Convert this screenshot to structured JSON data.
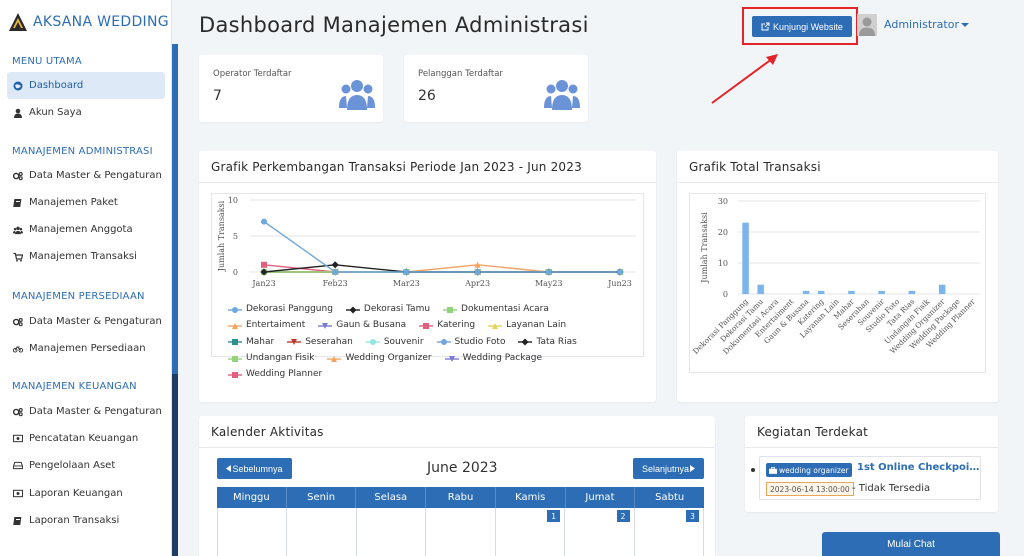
{
  "brand": {
    "name": "AKSANA WEDDING"
  },
  "sidebar": {
    "sections": [
      {
        "title": "MENU UTAMA"
      },
      {
        "title": "MANAJEMEN ADMINISTRASI"
      },
      {
        "title": "MANAJEMEN PERSEDIAAN"
      },
      {
        "title": "MANAJEMEN KEUANGAN"
      }
    ],
    "items": [
      {
        "label": "Dashboard",
        "icon": "globe-icon"
      },
      {
        "label": "Akun Saya",
        "icon": "user-icon"
      },
      {
        "label": "Data Master & Pengaturan",
        "icon": "cogs-icon"
      },
      {
        "label": "Manajemen Paket",
        "icon": "book-icon"
      },
      {
        "label": "Manajemen Anggota",
        "icon": "users-icon"
      },
      {
        "label": "Manajemen Transaksi",
        "icon": "cart-icon"
      },
      {
        "label": "Data Master & Pengaturan",
        "icon": "cogs-icon"
      },
      {
        "label": "Manajemen Persediaan",
        "icon": "bicycle-icon"
      },
      {
        "label": "Data Master & Pengaturan",
        "icon": "cogs-icon"
      },
      {
        "label": "Pencatatan Keuangan",
        "icon": "money-icon"
      },
      {
        "label": "Pengelolaan Aset",
        "icon": "hdd-icon"
      },
      {
        "label": "Laporan Keuangan",
        "icon": "money-icon"
      },
      {
        "label": "Laporan Transaksi",
        "icon": "book-icon"
      }
    ]
  },
  "header": {
    "title": "Dashboard Manajemen Administrasi",
    "visit_label": "Kunjungi Website",
    "user_label": "Administrator"
  },
  "stats": {
    "operator": {
      "label": "Operator Terdaftar",
      "value": "7"
    },
    "customer": {
      "label": "Pelanggan Terdaftar",
      "value": "26"
    }
  },
  "line_panel": {
    "title": "Grafik Perkembangan Transaksi Periode Jan 2023 - Jun 2023"
  },
  "bar_panel": {
    "title": "Grafik Total Transaksi"
  },
  "calendar": {
    "title": "Kalender Aktivitas",
    "prev_label": "Sebelumnya",
    "next_label": "Selanjutnya",
    "month_label": "June 2023",
    "weekdays": [
      "Minggu",
      "Senin",
      "Selasa",
      "Rabu",
      "Kamis",
      "Jumat",
      "Sabtu"
    ],
    "first_row_days": [
      "",
      "",
      "",
      "",
      "1",
      "2",
      "3"
    ]
  },
  "upcoming": {
    "title": "Kegiatan Terdekat",
    "tag": "wedding organizer",
    "event_title": "1st Online Checkpoint...",
    "date": "2023-06-14 13:00:00",
    "status": "- Tidak Tersedia"
  },
  "chat": {
    "label": "Mulai Chat"
  },
  "chart_data": [
    {
      "type": "line",
      "title": "Grafik Perkembangan Transaksi Periode Jan 2023 - Jun 2023",
      "ylabel": "Jumlah Transaksi",
      "xlabel": "",
      "categories": [
        "Jan23",
        "Feb23",
        "Mar23",
        "Apr23",
        "May23",
        "Jun23"
      ],
      "ylim": [
        0,
        10
      ],
      "yticks": [
        0,
        5,
        10
      ],
      "legend_position": "bottom",
      "series": [
        {
          "name": "Dekorasi Panggung",
          "color": "#6fa8dc",
          "marker": "circle",
          "values": [
            7,
            0,
            0,
            0,
            0,
            0
          ]
        },
        {
          "name": "Dekorasi Tamu",
          "color": "#222222",
          "marker": "diamond",
          "values": [
            0,
            1,
            0,
            0,
            0,
            0
          ]
        },
        {
          "name": "Dokumentasi Acara",
          "color": "#93d37a",
          "marker": "square",
          "values": [
            0,
            0,
            0,
            0,
            0,
            0
          ]
        },
        {
          "name": "Entertaiment",
          "color": "#f4a460",
          "marker": "triangle",
          "values": [
            0,
            0,
            0,
            1,
            0,
            0
          ]
        },
        {
          "name": "Gaun & Busana",
          "color": "#7b7bd1",
          "marker": "triangle-down",
          "values": [
            0,
            0,
            0,
            0,
            0,
            0
          ]
        },
        {
          "name": "Katering",
          "color": "#e0607e",
          "marker": "square",
          "values": [
            1,
            0,
            0,
            0,
            0,
            0
          ]
        },
        {
          "name": "Layanan Lain",
          "color": "#e4d354",
          "marker": "triangle",
          "values": [
            0,
            0,
            0,
            0,
            0,
            0
          ]
        },
        {
          "name": "Mahar",
          "color": "#2b908f",
          "marker": "square",
          "values": [
            0,
            0,
            0,
            0,
            0,
            0
          ]
        },
        {
          "name": "Seserahan",
          "color": "#c0392b",
          "marker": "triangle-down",
          "values": [
            0,
            0,
            0,
            0,
            0,
            0
          ]
        },
        {
          "name": "Souvenir",
          "color": "#91e8e1",
          "marker": "circle",
          "values": [
            0,
            0,
            0,
            0,
            0,
            0
          ]
        },
        {
          "name": "Studio Foto",
          "color": "#6fa8dc",
          "marker": "circle",
          "values": [
            0,
            0,
            0,
            0,
            0,
            0
          ]
        },
        {
          "name": "Tata Rias",
          "color": "#222222",
          "marker": "diamond",
          "values": [
            0,
            0,
            0,
            0,
            0,
            0
          ]
        },
        {
          "name": "Undangan Fisik",
          "color": "#93d37a",
          "marker": "square",
          "values": [
            0,
            0,
            0,
            0,
            0,
            0
          ]
        },
        {
          "name": "Wedding Organizer",
          "color": "#f4a460",
          "marker": "triangle",
          "values": [
            0,
            0,
            0,
            0,
            0,
            0
          ]
        },
        {
          "name": "Wedding Package",
          "color": "#7b7bd1",
          "marker": "triangle-down",
          "values": [
            0,
            0,
            0,
            0,
            0,
            0
          ]
        },
        {
          "name": "Wedding Planner",
          "color": "#e0607e",
          "marker": "square",
          "values": [
            0,
            0,
            0,
            0,
            0,
            0
          ]
        }
      ]
    },
    {
      "type": "bar",
      "title": "Grafik Total Transaksi",
      "ylabel": "Jumlah Transaksi",
      "xlabel": "",
      "categories": [
        "Dekorasi Panggung",
        "Dekorasi Tamu",
        "Dokumentasi Acara",
        "Entertaiment",
        "Gaun & Busana",
        "Katering",
        "Layanan Lain",
        "Mahar",
        "Seserahan",
        "Souvenir",
        "Studio Foto",
        "Tata Rias",
        "Undangan Fisik",
        "Wedding Organizer",
        "Wedding Package",
        "Wedding Planner"
      ],
      "values": [
        23,
        3,
        0,
        0,
        1,
        1,
        0,
        1,
        0,
        1,
        0,
        1,
        0,
        3,
        0,
        0
      ],
      "ylim": [
        0,
        30
      ],
      "yticks": [
        0,
        10,
        20,
        30
      ],
      "color": "#7cb5ec"
    }
  ]
}
